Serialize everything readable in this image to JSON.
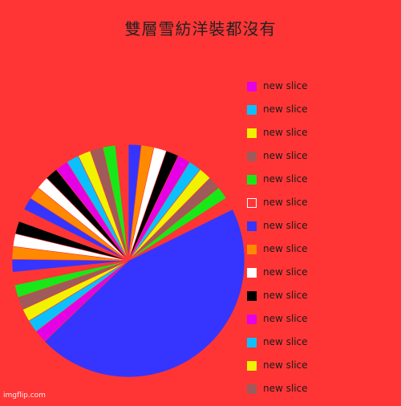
{
  "chart_data": {
    "type": "pie",
    "title": "雙層雪紡洋裝都沒有",
    "start_clockwise_from_top": true,
    "slices": [
      {
        "label": "new slice",
        "value": 1.65,
        "color": "#3535ff"
      },
      {
        "label": "new slice",
        "value": 1.65,
        "color": "#ff8a00"
      },
      {
        "label": "new slice",
        "value": 1.65,
        "color": "#ffffff"
      },
      {
        "label": "new slice",
        "value": 1.65,
        "color": "#000000"
      },
      {
        "label": "new slice",
        "value": 1.65,
        "color": "#e600e6"
      },
      {
        "label": "new slice",
        "value": 1.65,
        "color": "#0cc0ff"
      },
      {
        "label": "new slice",
        "value": 1.65,
        "color": "#f2f200"
      },
      {
        "label": "new slice",
        "value": 1.65,
        "color": "#a05a5a"
      },
      {
        "label": "new slice",
        "value": 1.65,
        "color": "#18e818"
      },
      {
        "label": "new slice",
        "value": 1.65,
        "color": "#ff3535"
      },
      {
        "label": "new slice",
        "value": 42.0,
        "color": "#3535ff"
      },
      {
        "label": "new slice",
        "value": 1.65,
        "color": "#e600e6"
      },
      {
        "label": "new slice",
        "value": 1.65,
        "color": "#0cc0ff"
      },
      {
        "label": "new slice",
        "value": 1.65,
        "color": "#f2f200"
      },
      {
        "label": "new slice",
        "value": 1.65,
        "color": "#a05a5a"
      },
      {
        "label": "new slice",
        "value": 1.65,
        "color": "#18e818"
      },
      {
        "label": "new slice",
        "value": 1.65,
        "color": "#ff3535"
      },
      {
        "label": "new slice",
        "value": 1.65,
        "color": "#3535ff"
      },
      {
        "label": "new slice",
        "value": 1.65,
        "color": "#ff8a00"
      },
      {
        "label": "new slice",
        "value": 1.65,
        "color": "#ffffff"
      },
      {
        "label": "new slice",
        "value": 1.65,
        "color": "#000000"
      },
      {
        "label": "new slice",
        "value": 1.65,
        "color": "#ff3535"
      },
      {
        "label": "new slice",
        "value": 1.65,
        "color": "#3535ff"
      },
      {
        "label": "new slice",
        "value": 1.65,
        "color": "#ff8a00"
      },
      {
        "label": "new slice",
        "value": 1.65,
        "color": "#ffffff"
      },
      {
        "label": "new slice",
        "value": 1.65,
        "color": "#000000"
      },
      {
        "label": "new slice",
        "value": 1.65,
        "color": "#e600e6"
      },
      {
        "label": "new slice",
        "value": 1.65,
        "color": "#0cc0ff"
      },
      {
        "label": "new slice",
        "value": 1.65,
        "color": "#f2f200"
      },
      {
        "label": "new slice",
        "value": 1.65,
        "color": "#a05a5a"
      },
      {
        "label": "new slice",
        "value": 1.65,
        "color": "#18e818"
      },
      {
        "label": "new slice",
        "value": 1.65,
        "color": "#ff3535"
      }
    ],
    "legend_position": "right",
    "legend": [
      {
        "label": "new slice",
        "color": "#e600e6"
      },
      {
        "label": "new slice",
        "color": "#0cc0ff"
      },
      {
        "label": "new slice",
        "color": "#f2f200"
      },
      {
        "label": "new slice",
        "color": "#a05a5a"
      },
      {
        "label": "new slice",
        "color": "#18e818"
      },
      {
        "label": "new slice",
        "color": "#ff3535"
      },
      {
        "label": "new slice",
        "color": "#3535ff"
      },
      {
        "label": "new slice",
        "color": "#ff8a00"
      },
      {
        "label": "new slice",
        "color": "#ffffff"
      },
      {
        "label": "new slice",
        "color": "#000000"
      },
      {
        "label": "new slice",
        "color": "#e600e6"
      },
      {
        "label": "new slice",
        "color": "#0cc0ff"
      },
      {
        "label": "new slice",
        "color": "#f2f200"
      },
      {
        "label": "new slice",
        "color": "#a05a5a"
      }
    ]
  },
  "watermark": "imgflip.com",
  "colors": {
    "background": "#ff3535"
  }
}
